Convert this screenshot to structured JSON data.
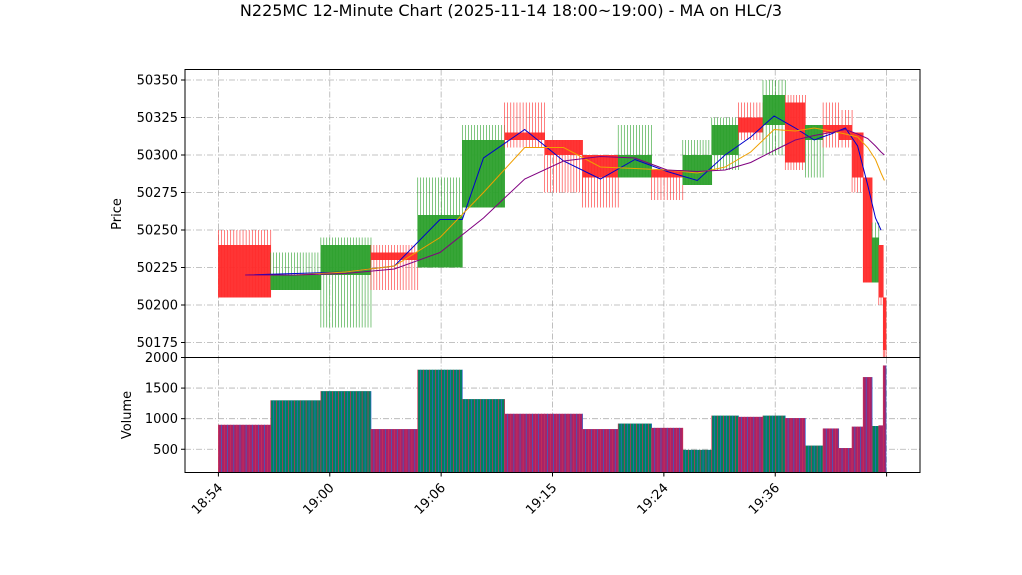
{
  "chart_data": [
    {
      "type": "candlestick",
      "title": "N225MC 12-Minute Chart (2025-11-14 18:00~19:00) - MA on HLC/3",
      "ylabel": "Price",
      "ylim": [
        50165,
        50357
      ],
      "yticks": [
        50175,
        50200,
        50225,
        50250,
        50275,
        50300,
        50325,
        50350
      ],
      "grid": true,
      "up_color": "#2ca02c",
      "down_color": "#ff2a2a",
      "candles": [
        {
          "x0": 0.0,
          "x1": 4.7,
          "open": 50240,
          "close": 50205,
          "high": 50250,
          "low": 50205
        },
        {
          "x0": 4.7,
          "x1": 9.2,
          "open": 50210,
          "close": 50220,
          "high": 50235,
          "low": 50210
        },
        {
          "x0": 9.2,
          "x1": 13.7,
          "open": 50220,
          "close": 50240,
          "high": 50245,
          "low": 50185
        },
        {
          "x0": 13.7,
          "x1": 17.9,
          "open": 50235,
          "close": 50230,
          "high": 50240,
          "low": 50210
        },
        {
          "x0": 17.9,
          "x1": 21.9,
          "open": 50225,
          "close": 50260,
          "high": 50285,
          "low": 50225
        },
        {
          "x0": 21.9,
          "x1": 25.7,
          "open": 50265,
          "close": 50310,
          "high": 50320,
          "low": 50265
        },
        {
          "x0": 25.7,
          "x1": 29.3,
          "open": 50315,
          "close": 50310,
          "high": 50335,
          "low": 50305
        },
        {
          "x0": 29.3,
          "x1": 32.7,
          "open": 50310,
          "close": 50300,
          "high": 50310,
          "low": 50275
        },
        {
          "x0": 32.7,
          "x1": 35.9,
          "open": 50300,
          "close": 50285,
          "high": 50300,
          "low": 50265
        },
        {
          "x0": 35.9,
          "x1": 38.9,
          "open": 50285,
          "close": 50300,
          "high": 50320,
          "low": 50285
        },
        {
          "x0": 38.9,
          "x1": 41.7,
          "open": 50290,
          "close": 50285,
          "high": 50290,
          "low": 50270
        },
        {
          "x0": 41.7,
          "x1": 44.3,
          "open": 50280,
          "close": 50300,
          "high": 50310,
          "low": 50280
        },
        {
          "x0": 44.3,
          "x1": 46.7,
          "open": 50300,
          "close": 50320,
          "high": 50325,
          "low": 50290
        },
        {
          "x0": 46.7,
          "x1": 48.9,
          "open": 50325,
          "close": 50315,
          "high": 50335,
          "low": 50310
        },
        {
          "x0": 48.9,
          "x1": 50.9,
          "open": 50320,
          "close": 50340,
          "high": 50350,
          "low": 50300
        },
        {
          "x0": 50.9,
          "x1": 52.7,
          "open": 50335,
          "close": 50295,
          "high": 50340,
          "low": 50290
        },
        {
          "x0": 52.7,
          "x1": 54.3,
          "open": 50310,
          "close": 50320,
          "high": 50320,
          "low": 50285
        },
        {
          "x0": 54.3,
          "x1": 55.7,
          "open": 50320,
          "close": 50315,
          "high": 50335,
          "low": 50305
        },
        {
          "x0": 55.7,
          "x1": 56.9,
          "open": 50320,
          "close": 50310,
          "high": 50330,
          "low": 50305
        },
        {
          "x0": 56.9,
          "x1": 57.9,
          "open": 50315,
          "close": 50285,
          "high": 50315,
          "low": 50275
        },
        {
          "x0": 57.9,
          "x1": 58.7,
          "open": 50285,
          "close": 50215,
          "high": 50285,
          "low": 50215
        },
        {
          "x0": 58.7,
          "x1": 59.3,
          "open": 50215,
          "close": 50245,
          "high": 50255,
          "low": 50215
        },
        {
          "x0": 59.3,
          "x1": 59.7,
          "open": 50240,
          "close": 50205,
          "high": 50240,
          "low": 50200
        },
        {
          "x0": 59.7,
          "x1": 59.95,
          "open": 50205,
          "close": 50170,
          "high": 50205,
          "low": 50165
        }
      ],
      "ma_series": [
        {
          "color": "#0000cc",
          "points": [
            [
              2.4,
              50220
            ],
            [
              6.9,
              50221
            ],
            [
              11.4,
              50222
            ],
            [
              15.8,
              50226
            ],
            [
              19.9,
              50257
            ],
            [
              21.9,
              50257
            ],
            [
              23.8,
              50298
            ],
            [
              27.5,
              50317
            ],
            [
              31.0,
              50296
            ],
            [
              34.3,
              50284
            ],
            [
              37.4,
              50297
            ],
            [
              40.3,
              50289
            ],
            [
              43.0,
              50283
            ],
            [
              45.5,
              50300
            ],
            [
              47.8,
              50312
            ],
            [
              49.9,
              50326
            ],
            [
              51.8,
              50318
            ],
            [
              53.5,
              50310
            ],
            [
              55.0,
              50314
            ],
            [
              56.3,
              50318
            ],
            [
              57.4,
              50306
            ],
            [
              58.3,
              50280
            ],
            [
              59.0,
              50258
            ],
            [
              59.5,
              50250
            ]
          ]
        },
        {
          "color": "#f0a000",
          "points": [
            [
              2.4,
              50220
            ],
            [
              6.9,
              50220
            ],
            [
              11.4,
              50222
            ],
            [
              15.8,
              50226
            ],
            [
              19.9,
              50245
            ],
            [
              23.8,
              50275
            ],
            [
              27.5,
              50305
            ],
            [
              31.0,
              50305
            ],
            [
              34.3,
              50292
            ],
            [
              37.4,
              50291
            ],
            [
              40.3,
              50290
            ],
            [
              43.0,
              50288
            ],
            [
              45.5,
              50292
            ],
            [
              47.8,
              50302
            ],
            [
              49.9,
              50317
            ],
            [
              51.8,
              50316
            ],
            [
              53.5,
              50318
            ],
            [
              55.0,
              50316
            ],
            [
              56.3,
              50314
            ],
            [
              57.4,
              50312
            ],
            [
              58.3,
              50305
            ],
            [
              59.0,
              50297
            ],
            [
              59.5,
              50288
            ],
            [
              59.8,
              50283
            ]
          ]
        },
        {
          "color": "#800080",
          "points": [
            [
              2.4,
              50220
            ],
            [
              6.9,
              50220
            ],
            [
              11.4,
              50221
            ],
            [
              15.8,
              50224
            ],
            [
              19.9,
              50235
            ],
            [
              23.8,
              50258
            ],
            [
              27.5,
              50284
            ],
            [
              31.0,
              50296
            ],
            [
              34.3,
              50299
            ],
            [
              37.4,
              50298
            ],
            [
              40.3,
              50290
            ],
            [
              43.0,
              50289
            ],
            [
              45.5,
              50290
            ],
            [
              47.8,
              50295
            ],
            [
              49.9,
              50303
            ],
            [
              51.8,
              50310
            ],
            [
              53.5,
              50313
            ],
            [
              55.0,
              50315
            ],
            [
              56.3,
              50317
            ],
            [
              57.4,
              50314
            ],
            [
              58.3,
              50311
            ],
            [
              59.0,
              50306
            ],
            [
              59.5,
              50302
            ],
            [
              59.8,
              50300
            ]
          ]
        }
      ]
    },
    {
      "type": "bar",
      "ylabel": "Volume",
      "ylim": [
        120,
        2000
      ],
      "yticks": [
        500,
        1000,
        1500,
        2000
      ],
      "grid": true,
      "edge_colors": [
        "#cc3355",
        "#3366cc"
      ],
      "up_fill": "#008060",
      "down_fill": "#aa2266",
      "bars": [
        {
          "x0": 0.0,
          "x1": 4.7,
          "value": 900,
          "up": false
        },
        {
          "x0": 4.7,
          "x1": 9.2,
          "value": 1300,
          "up": true
        },
        {
          "x0": 9.2,
          "x1": 13.7,
          "value": 1450,
          "up": true
        },
        {
          "x0": 13.7,
          "x1": 17.9,
          "value": 830,
          "up": false
        },
        {
          "x0": 17.9,
          "x1": 21.9,
          "value": 1800,
          "up": true
        },
        {
          "x0": 21.9,
          "x1": 25.7,
          "value": 1320,
          "up": true
        },
        {
          "x0": 25.7,
          "x1": 29.3,
          "value": 1080,
          "up": false
        },
        {
          "x0": 29.3,
          "x1": 32.7,
          "value": 1080,
          "up": false
        },
        {
          "x0": 32.7,
          "x1": 35.9,
          "value": 830,
          "up": false
        },
        {
          "x0": 35.9,
          "x1": 38.9,
          "value": 920,
          "up": true
        },
        {
          "x0": 38.9,
          "x1": 41.7,
          "value": 850,
          "up": false
        },
        {
          "x0": 41.7,
          "x1": 44.3,
          "value": 490,
          "up": true
        },
        {
          "x0": 44.3,
          "x1": 46.7,
          "value": 1050,
          "up": true
        },
        {
          "x0": 46.7,
          "x1": 48.9,
          "value": 1030,
          "up": false
        },
        {
          "x0": 48.9,
          "x1": 50.9,
          "value": 1050,
          "up": true
        },
        {
          "x0": 50.9,
          "x1": 52.7,
          "value": 1010,
          "up": false
        },
        {
          "x0": 52.7,
          "x1": 54.3,
          "value": 560,
          "up": true
        },
        {
          "x0": 54.3,
          "x1": 55.7,
          "value": 840,
          "up": false
        },
        {
          "x0": 55.7,
          "x1": 56.9,
          "value": 520,
          "up": false
        },
        {
          "x0": 56.9,
          "x1": 57.9,
          "value": 870,
          "up": false
        },
        {
          "x0": 57.9,
          "x1": 58.7,
          "value": 1680,
          "up": false
        },
        {
          "x0": 58.7,
          "x1": 59.3,
          "value": 880,
          "up": true
        },
        {
          "x0": 59.3,
          "x1": 59.7,
          "value": 890,
          "up": false
        },
        {
          "x0": 59.7,
          "x1": 59.95,
          "value": 1870,
          "up": false
        }
      ],
      "xlim": [
        -3.0,
        63.0
      ],
      "xticks": [
        {
          "x": 0,
          "label": "18:54"
        },
        {
          "x": 10,
          "label": "19:00"
        },
        {
          "x": 20,
          "label": "19:06"
        },
        {
          "x": 30,
          "label": "19:15"
        },
        {
          "x": 40,
          "label": "19:24"
        },
        {
          "x": 50,
          "label": "19:36"
        },
        {
          "x": 60,
          "label": ""
        }
      ]
    }
  ]
}
